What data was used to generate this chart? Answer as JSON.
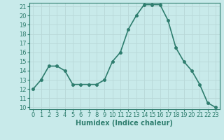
{
  "x": [
    0,
    1,
    2,
    3,
    4,
    5,
    6,
    7,
    8,
    9,
    10,
    11,
    12,
    13,
    14,
    15,
    16,
    17,
    18,
    19,
    20,
    21,
    22,
    23
  ],
  "y": [
    12,
    13,
    14.5,
    14.5,
    14,
    12.5,
    12.5,
    12.5,
    12.5,
    13,
    15,
    16,
    18.5,
    20,
    21.2,
    21.2,
    21.2,
    19.5,
    16.5,
    15,
    14,
    12.5,
    10.5,
    10
  ],
  "line_color": "#2e7d6e",
  "marker": "o",
  "markersize": 2.5,
  "linewidth": 1.2,
  "bg_color": "#c8eaea",
  "grid_color": "#b8d8d8",
  "xlabel": "Humidex (Indice chaleur)",
  "ylim": [
    9.8,
    21.4
  ],
  "xlim": [
    -0.5,
    23.5
  ],
  "yticks": [
    10,
    11,
    12,
    13,
    14,
    15,
    16,
    17,
    18,
    19,
    20,
    21
  ],
  "xticks": [
    0,
    1,
    2,
    3,
    4,
    5,
    6,
    7,
    8,
    9,
    10,
    11,
    12,
    13,
    14,
    15,
    16,
    17,
    18,
    19,
    20,
    21,
    22,
    23
  ],
  "xlabel_fontsize": 7,
  "tick_fontsize": 6
}
